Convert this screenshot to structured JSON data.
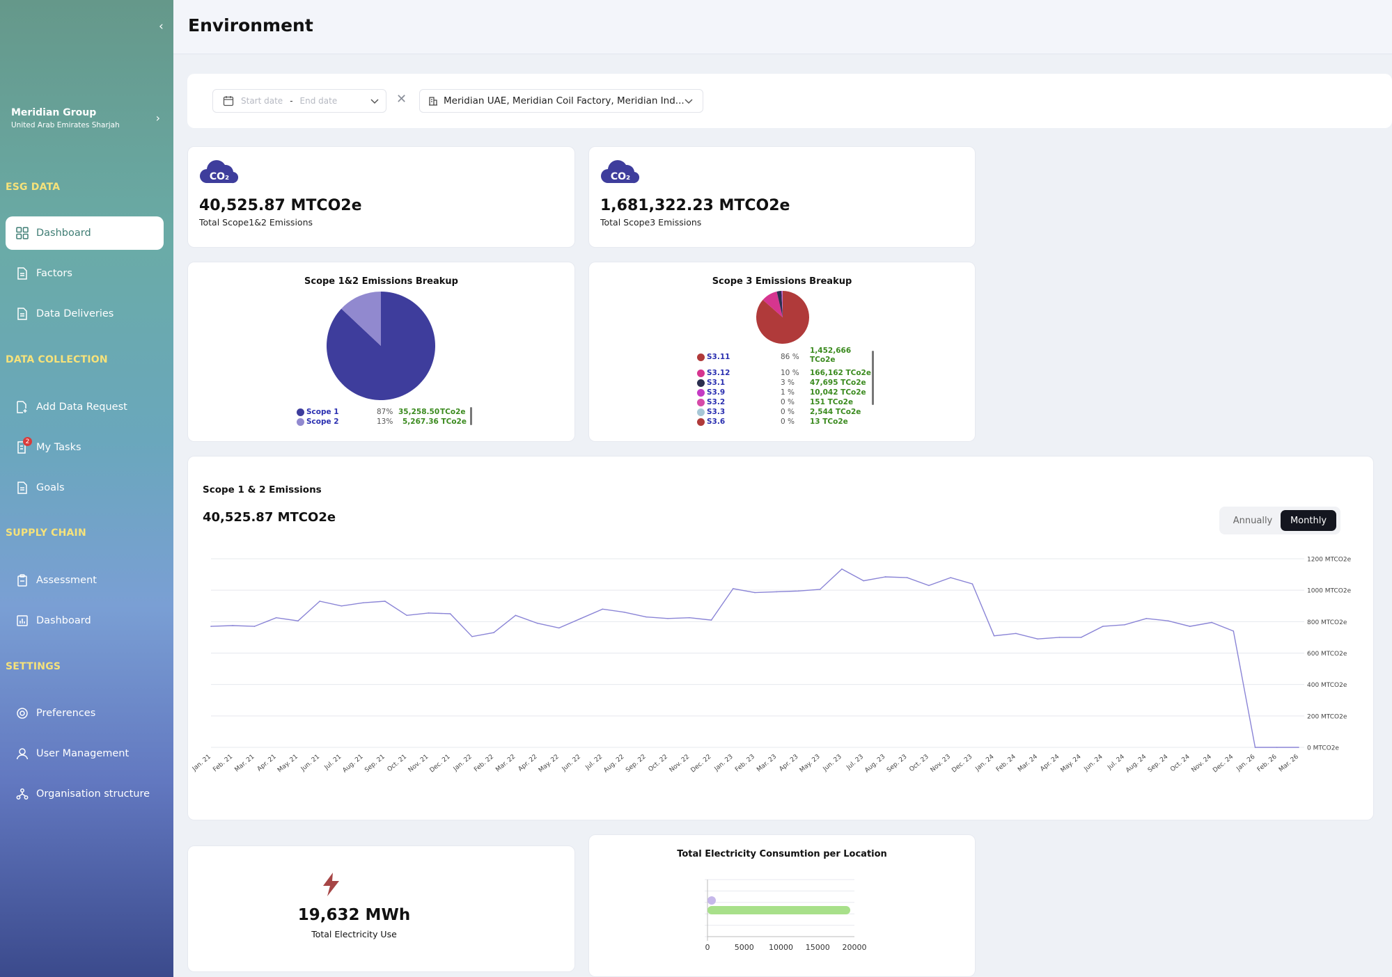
{
  "sidebar": {
    "org_name": "Meridian Group",
    "org_location": "United Arab Emirates Sharjah",
    "sections": {
      "esg": "ESG DATA",
      "collection": "DATA COLLECTION",
      "supply": "SUPPLY CHAIN",
      "settings": "SETTINGS"
    },
    "items": {
      "dashboard": "Dashboard",
      "factors": "Factors",
      "data_deliveries": "Data Deliveries",
      "add_data_request": "Add Data Request",
      "my_tasks": "My Tasks",
      "my_tasks_badge": "2",
      "goals": "Goals",
      "assessment": "Assessment",
      "supply_dashboard": "Dashboard",
      "preferences": "Preferences",
      "user_management": "User Management",
      "org_structure": "Organisation structure"
    }
  },
  "header": {
    "title": "Environment"
  },
  "filters": {
    "start_placeholder": "Start date",
    "end_placeholder": "End date",
    "separator": "-",
    "locations": "Meridian UAE, Meridian Coil Factory, Meridian Ind..."
  },
  "kpis": {
    "scope12": {
      "icon_text": "CO₂",
      "value": "40,525.87 MTCO2e",
      "label": "Total Scope1&2 Emissions"
    },
    "scope3": {
      "icon_text": "CO₂",
      "value": "1,681,322.23 MTCO2e",
      "label": "Total Scope3 Emissions"
    },
    "electricity": {
      "value": "19,632 MWh",
      "label": "Total Electricity Use"
    }
  },
  "colors": {
    "scope1": "#3e3d9c",
    "scope2": "#9189cf",
    "line": "#8a84d6",
    "bar_green": "#a8e08a",
    "bar_purple": "#c6b8ea"
  },
  "scope12_breakup": {
    "title": "Scope 1&2 Emissions Breakup",
    "rows": [
      {
        "name": "Scope 1",
        "pct": "87%",
        "value": "35,258.50",
        "unit": "TCo2e",
        "color": "#3e3d9c"
      },
      {
        "name": "Scope 2",
        "pct": "13%",
        "value": "5,267.36 TCo2e",
        "unit": "",
        "color": "#9189cf"
      }
    ]
  },
  "scope3_breakup": {
    "title": "Scope 3 Emissions Breakup",
    "rows": [
      {
        "name": "S3.11",
        "pct": "86 %",
        "value": "1,452,666",
        "value2": "TCo2e",
        "color": "#b03a3a"
      },
      {
        "name": "S3.12",
        "pct": "10 %",
        "value": "166,162 TCo2e",
        "color": "#d6358f"
      },
      {
        "name": "S3.1",
        "pct": "3 %",
        "value": "47,695 TCo2e",
        "color": "#2b2f4f"
      },
      {
        "name": "S3.9",
        "pct": "1 %",
        "value": "10,042 TCo2e",
        "color": "#c43bc4"
      },
      {
        "name": "S3.2",
        "pct": "0 %",
        "value": "151 TCo2e",
        "color": "#d64aa8"
      },
      {
        "name": "S3.3",
        "pct": "0 %",
        "value": "2,544 TCo2e",
        "color": "#a7c7d6"
      },
      {
        "name": "S3.6",
        "pct": "0 %",
        "value": "13 TCo2e",
        "color": "#b03a3a"
      }
    ]
  },
  "emissions_chart": {
    "title": "Scope 1 & 2 Emissions",
    "total": "40,525.87 MTCO2e",
    "toggle_annually": "Annually",
    "toggle_monthly": "Monthly"
  },
  "electricity_chart": {
    "title": "Total Electricity Consumtion per Location"
  },
  "chart_data": [
    {
      "type": "pie",
      "title": "Scope 1&2 Emissions Breakup",
      "labels": [
        "Scope 1",
        "Scope 2"
      ],
      "values": [
        35258.5,
        5267.36
      ]
    },
    {
      "type": "pie",
      "title": "Scope 3 Emissions Breakup",
      "labels": [
        "S3.11",
        "S3.12",
        "S3.1",
        "S3.9",
        "S3.2",
        "S3.3",
        "S3.6"
      ],
      "values": [
        1452666,
        166162,
        47695,
        10042,
        151,
        2544,
        13
      ]
    },
    {
      "type": "line",
      "title": "Scope 1 & 2 Emissions",
      "ylim": [
        0,
        1200
      ],
      "yticks": [
        "0 MTCO2e",
        "200 MTCO2e",
        "400 MTCO2e",
        "600 MTCO2e",
        "800 MTCO2e",
        "1000 MTCO2e",
        "1200 MTCO2e"
      ],
      "ytick_values": [
        0,
        200,
        400,
        600,
        800,
        1000,
        1200
      ],
      "y_axis": "right",
      "grid": true,
      "categories": [
        "Jan. 21",
        "Feb. 21",
        "Mar. 21",
        "Apr. 21",
        "May. 21",
        "Jun. 21",
        "Jul. 21",
        "Aug. 21",
        "Sep. 21",
        "Oct. 21",
        "Nov. 21",
        "Dec. 21",
        "Jan. 22",
        "Feb. 22",
        "Mar. 22",
        "Apr. 22",
        "May. 22",
        "Jun. 22",
        "Jul. 22",
        "Aug. 22",
        "Sep. 22",
        "Oct. 22",
        "Nov. 22",
        "Dec. 22",
        "Jan. 23",
        "Feb. 23",
        "Mar. 23",
        "Apr. 23",
        "May. 23",
        "Jun. 23",
        "Jul. 23",
        "Aug. 23",
        "Sep. 23",
        "Oct. 23",
        "Nov. 23",
        "Dec. 23",
        "Jan. 24",
        "Feb. 24",
        "Mar. 24",
        "Apr. 24",
        "May. 24",
        "Jun. 24",
        "Jul. 24",
        "Aug. 24",
        "Sep. 24",
        "Oct. 24",
        "Nov. 24",
        "Dec. 24",
        "Jan. 26",
        "Feb. 26",
        "Mar. 26"
      ],
      "values": [
        770,
        775,
        770,
        825,
        805,
        930,
        900,
        920,
        930,
        840,
        855,
        850,
        705,
        730,
        840,
        790,
        760,
        820,
        880,
        860,
        830,
        820,
        825,
        810,
        1010,
        985,
        990,
        995,
        1005,
        1135,
        1060,
        1085,
        1080,
        1030,
        1080,
        1040,
        710,
        725,
        690,
        700,
        700,
        770,
        780,
        820,
        805,
        770,
        795,
        740,
        0,
        0,
        0
      ]
    },
    {
      "type": "bar",
      "orientation": "horizontal",
      "title": "Total Electricity Consumtion per Location",
      "xlim": [
        0,
        20000
      ],
      "xticks": [
        "0",
        "5000",
        "10000",
        "15000",
        "20000"
      ],
      "xtick_values": [
        0,
        5000,
        10000,
        15000,
        20000
      ],
      "categories": [
        "",
        ""
      ],
      "values": [
        200,
        19432
      ]
    }
  ]
}
